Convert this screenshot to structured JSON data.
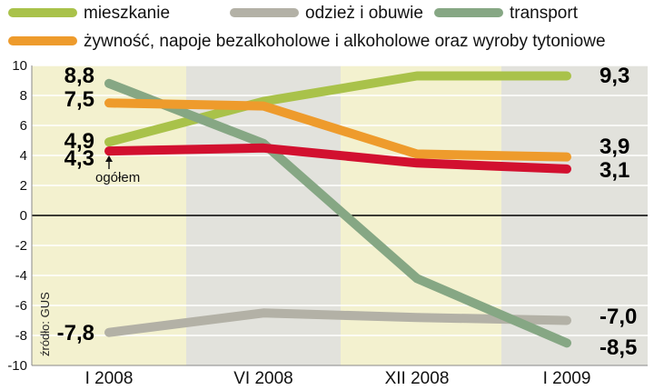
{
  "chart_data": {
    "type": "line",
    "categories": [
      "I 2008",
      "VI 2008",
      "XII 2008",
      "I 2009"
    ],
    "ylim": [
      -10,
      10
    ],
    "yticks": [
      -10,
      -8,
      -6,
      -4,
      -2,
      0,
      2,
      4,
      6,
      8,
      10
    ],
    "series": [
      {
        "name": "mieszkanie",
        "color": "#a9c24a",
        "values": [
          4.9,
          7.6,
          9.3,
          9.3
        ],
        "start_label": "4,9",
        "end_label": "9,3"
      },
      {
        "name": "odzież i obuwie",
        "color": "#b3b1a6",
        "values": [
          -7.8,
          -6.5,
          -6.8,
          -7.0
        ],
        "start_label": "-7,8",
        "end_label": "-7,0"
      },
      {
        "name": "transport",
        "color": "#86a784",
        "values": [
          8.8,
          4.8,
          -4.2,
          -8.5
        ],
        "start_label": "8,8",
        "end_label": "-8,5"
      },
      {
        "name": "żywność, napoje bezalkoholowe i alkoholowe oraz wyroby tytoniowe",
        "color": "#ee9b2c",
        "values": [
          7.5,
          7.3,
          4.1,
          3.9
        ],
        "start_label": "7,5",
        "end_label": "3,9"
      },
      {
        "name": "ogółem",
        "color": "#d2102f",
        "values": [
          4.3,
          4.5,
          3.5,
          3.1
        ],
        "start_label": "4,3",
        "end_label": "3,1"
      }
    ],
    "annotation": "ogółem",
    "source": "źródło: GUS"
  }
}
